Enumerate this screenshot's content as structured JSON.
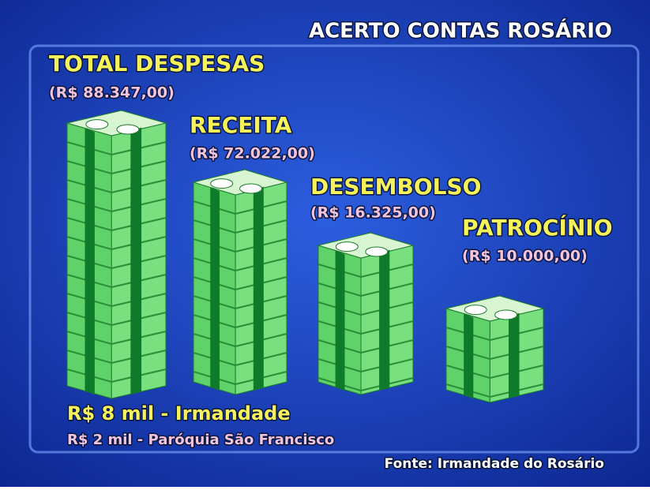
{
  "title": "ACERTO CONTAS ROSÁRIO",
  "items": [
    {
      "label": "TOTAL DESPESAS",
      "amount": "(R$ 88.347,00)"
    },
    {
      "label": "RECEITA",
      "amount": "(R$ 72.022,00)"
    },
    {
      "label": "DESEMBOLSO",
      "amount": "(R$ 16.325,00)"
    },
    {
      "label": "PATROCÍNIO",
      "amount": "(R$ 10.000,00)"
    }
  ],
  "notes": [
    "R$ 8 mil - Irmandade",
    "R$ 2 mil - Paróquia São Francisco"
  ],
  "source": "Fonte: Irmandade do Rosário"
}
